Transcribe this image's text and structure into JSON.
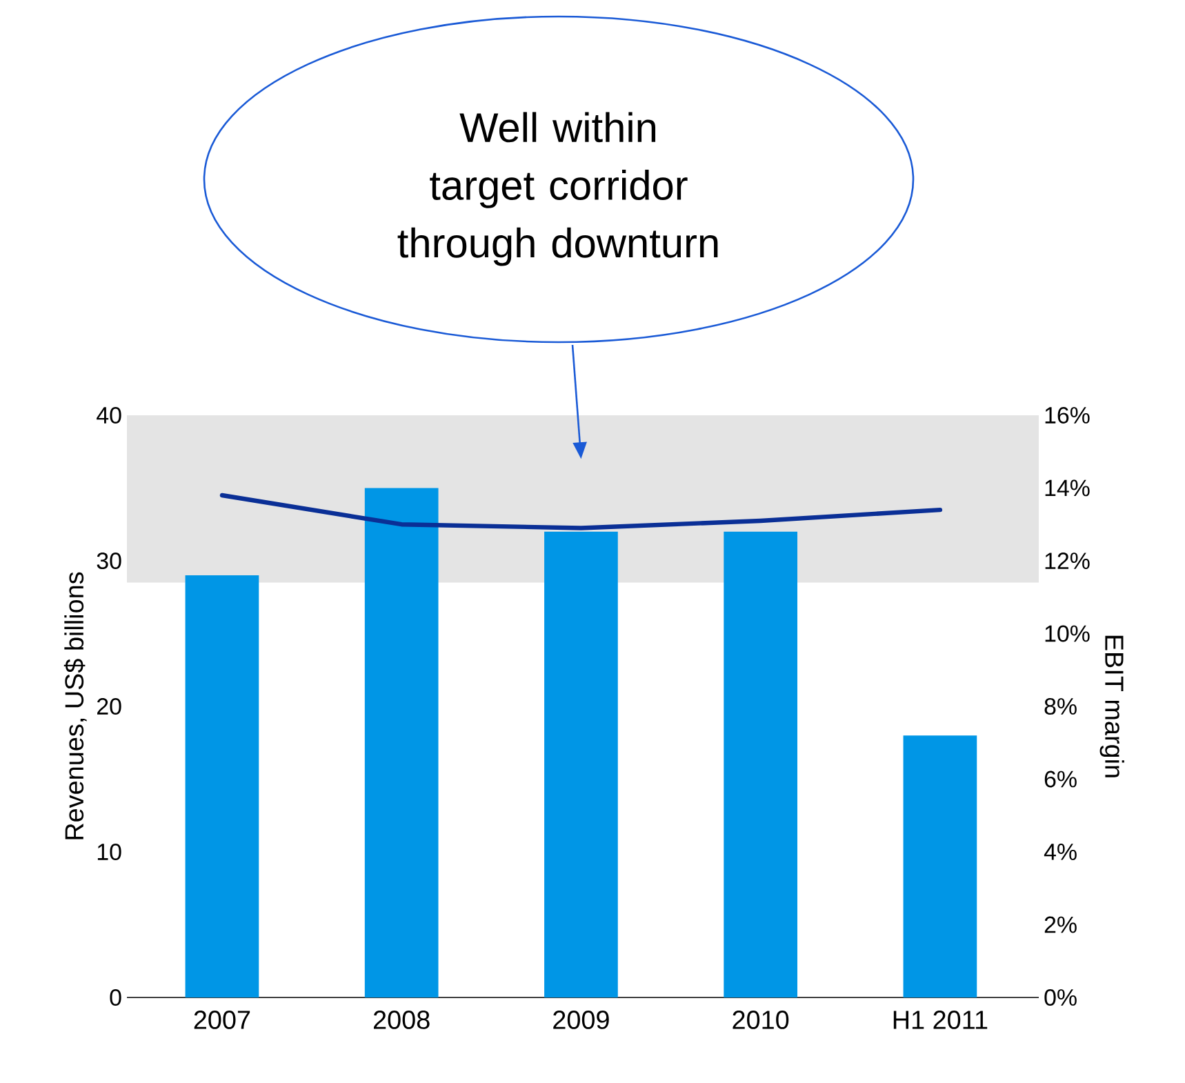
{
  "chart_data": {
    "type": "bar",
    "categories": [
      "2007",
      "2008",
      "2009",
      "2010",
      "H1 2011"
    ],
    "series": [
      {
        "color": "#0096e6",
        "values": [
          29,
          35,
          32,
          32,
          18
        ]
      },
      {
        "type": "line",
        "axis": "y2",
        "color": "#0a2f96",
        "values": [
          13.8,
          13.0,
          12.9,
          13.1,
          13.4
        ]
      }
    ],
    "ylabel": "Revenues, US$ billions",
    "y2label": "EBIT margin",
    "ylim": [
      0,
      40
    ],
    "yticks": [
      0,
      10,
      20,
      30,
      40
    ],
    "y2lim": [
      0,
      16
    ],
    "y2ticks": [
      {
        "value": 0,
        "label": "0%"
      },
      {
        "value": 2,
        "label": "2%"
      },
      {
        "value": 4,
        "label": "4%"
      },
      {
        "value": 6,
        "label": "6%"
      },
      {
        "value": 8,
        "label": "8%"
      },
      {
        "value": 10,
        "label": "10%"
      },
      {
        "value": 12,
        "label": "12%"
      },
      {
        "value": 14,
        "label": "14%"
      },
      {
        "value": 16,
        "label": "16%"
      }
    ],
    "bands": [
      {
        "axis": "y2",
        "from": 11.4,
        "to": 16,
        "color": "#e4e4e4"
      }
    ],
    "annotations": [
      "Well within target corridor through downturn"
    ]
  }
}
